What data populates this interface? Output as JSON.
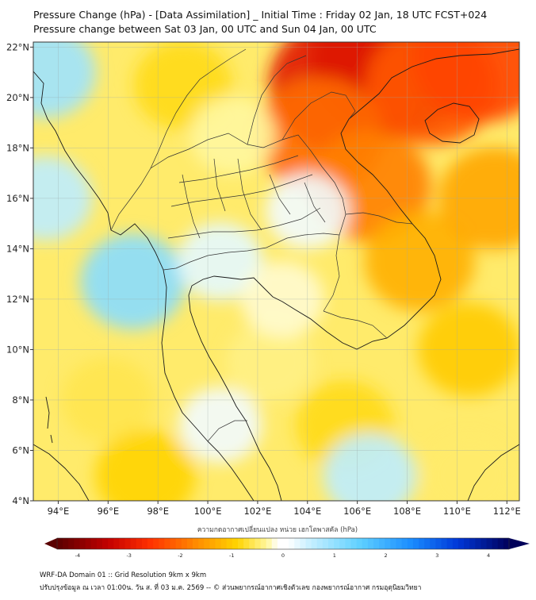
{
  "title_line1": "Pressure Change (hPa) - [Data Assimilation] _ Initial Time : Friday 02 Jan, 18 UTC FCST+024",
  "title_line2": "Pressure change between Sat 03 Jan, 00 UTC and Sun 04 Jan, 00 UTC",
  "map": {
    "lon_range": [
      93,
      112.5
    ],
    "lat_range": [
      4,
      22.2
    ],
    "x_ticks": [
      "94°E",
      "96°E",
      "98°E",
      "100°E",
      "102°E",
      "104°E",
      "106°E",
      "108°E",
      "110°E",
      "112°E"
    ],
    "x_tick_values": [
      94,
      96,
      98,
      100,
      102,
      104,
      106,
      108,
      110,
      112
    ],
    "y_ticks": [
      "22°N",
      "20°N",
      "18°N",
      "16°N",
      "14°N",
      "12°N",
      "10°N",
      "8°N",
      "6°N",
      "4°N"
    ],
    "y_tick_values": [
      22,
      20,
      18,
      16,
      14,
      12,
      10,
      8,
      6,
      4
    ],
    "gridlines": true,
    "field": [
      {
        "lon": 107.5,
        "lat": 21.5,
        "value": -3.6
      },
      {
        "lon": 105.5,
        "lat": 20.5,
        "value": -3.0
      },
      {
        "lon": 109.0,
        "lat": 20.5,
        "value": -2.2
      },
      {
        "lon": 111.0,
        "lat": 21.5,
        "value": -2.4
      },
      {
        "lon": 104.5,
        "lat": 18.5,
        "value": -2.0
      },
      {
        "lon": 106.5,
        "lat": 16.5,
        "value": -1.8
      },
      {
        "lon": 108.5,
        "lat": 13.5,
        "value": -1.3
      },
      {
        "lon": 110.5,
        "lat": 10.0,
        "value": -1.0
      },
      {
        "lon": 111.5,
        "lat": 16.0,
        "value": -1.4
      },
      {
        "lon": 93.5,
        "lat": 21.0,
        "value": 0.9
      },
      {
        "lon": 93.5,
        "lat": 16.0,
        "value": 0.6
      },
      {
        "lon": 97.0,
        "lat": 12.7,
        "value": 1.1
      },
      {
        "lon": 96.0,
        "lat": 8.0,
        "value": -0.6
      },
      {
        "lon": 97.5,
        "lat": 5.0,
        "value": -0.9
      },
      {
        "lon": 100.5,
        "lat": 13.5,
        "value": 0.3
      },
      {
        "lon": 104.0,
        "lat": 15.5,
        "value": 0.2
      },
      {
        "lon": 102.5,
        "lat": 9.5,
        "value": -0.4
      },
      {
        "lon": 105.5,
        "lat": 7.0,
        "value": -0.8
      },
      {
        "lon": 100.5,
        "lat": 7.0,
        "value": 0.2
      },
      {
        "lon": 106.5,
        "lat": 5.0,
        "value": 0.6
      },
      {
        "lon": 110.5,
        "lat": 5.0,
        "value": -0.5
      },
      {
        "lon": 99.0,
        "lat": 20.5,
        "value": -0.8
      },
      {
        "lon": 101.0,
        "lat": 18.5,
        "value": -0.3
      },
      {
        "lon": 103.0,
        "lat": 12.0,
        "value": -0.2
      }
    ]
  },
  "colorbar": {
    "title": "ความกดอากาศเปลี่ยนแปลง หน่วย เฮกโตพาสคัล (hPa)",
    "ticks": [
      "-4",
      "-3",
      "-2",
      "-1",
      "0",
      "1",
      "2",
      "3",
      "4"
    ],
    "tick_values": [
      -4,
      -3,
      -2,
      -1,
      0,
      1,
      2,
      3,
      4
    ],
    "range": [
      -4.4,
      4.4
    ],
    "colors": [
      "#5a0000",
      "#c40000",
      "#ff3000",
      "#ff8a00",
      "#ffd400",
      "#fff7a0",
      "#ffffff",
      "#ffffff",
      "#c9f0ff",
      "#5fd0ff",
      "#1a8cff",
      "#0038d8",
      "#00005a"
    ],
    "color_stops": [
      -4.4,
      -3.4,
      -2.6,
      -1.7,
      -0.9,
      -0.3,
      -0.1,
      0.1,
      0.5,
      1.5,
      2.5,
      3.4,
      4.4
    ]
  },
  "footer_line1": "WRF-DA Domain 01 :: Grid Resolution 9km x 9km",
  "footer_line2": "ปรับปรุงข้อมูล ณ เวลา 01:00น. วัน ส. ที่ 03 ม.ค. 2569 -- © ส่วนพยากรณ์อากาศเชิงตัวเลข กองพยากรณ์อากาศ กรมอุตุนิยมวิทยา"
}
